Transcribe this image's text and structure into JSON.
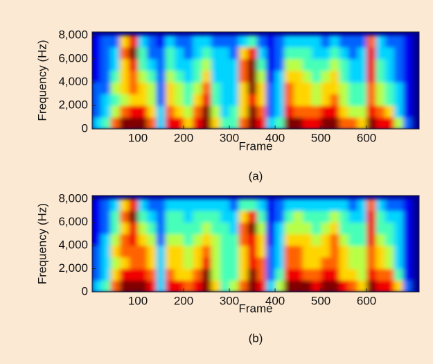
{
  "chart_data": [
    {
      "type": "heatmap",
      "colormap": "jet",
      "zlim": [
        0,
        9
      ],
      "xlabel": "Frame",
      "ylabel": "Frequency (Hz)",
      "caption": "(a)",
      "xlim": [
        0,
        715
      ],
      "ylim": [
        0,
        8300
      ],
      "xticks": [
        100,
        200,
        300,
        400,
        500,
        600
      ],
      "yticks": [
        0,
        {
          "value": 2000,
          "label": "2,000"
        },
        {
          "value": 4000,
          "label": "4,000"
        },
        {
          "value": 6000,
          "label": "6,000"
        },
        {
          "value": 8000,
          "label": "8,000"
        }
      ],
      "x": [
        10,
        30,
        50,
        70,
        90,
        110,
        130,
        150,
        170,
        190,
        210,
        230,
        250,
        270,
        290,
        310,
        330,
        350,
        370,
        390,
        410,
        430,
        450,
        470,
        490,
        510,
        530,
        550,
        570,
        590,
        610,
        630,
        650,
        670,
        690
      ],
      "y": [
        500,
        1500,
        2500,
        3500,
        4500,
        5500,
        6500,
        7500
      ],
      "values": [
        [
          3,
          4,
          7,
          9,
          9,
          9,
          7,
          3,
          8,
          8,
          6,
          8,
          9,
          6,
          4,
          4,
          7,
          9,
          8,
          3,
          4,
          9,
          9,
          8,
          8,
          9,
          9,
          7,
          7,
          6,
          9,
          8,
          8,
          5,
          2
        ],
        [
          2,
          3,
          5,
          7,
          8,
          8,
          6,
          3,
          7,
          6,
          5,
          7,
          9,
          5,
          3,
          4,
          6,
          9,
          7,
          2,
          3,
          8,
          7,
          7,
          7,
          8,
          8,
          6,
          5,
          5,
          8,
          7,
          6,
          3,
          1
        ],
        [
          2,
          3,
          4,
          5,
          6,
          6,
          5,
          2,
          6,
          5,
          4,
          6,
          8,
          4,
          3,
          3,
          6,
          8,
          6,
          2,
          3,
          7,
          6,
          6,
          5,
          6,
          7,
          5,
          4,
          4,
          7,
          5,
          4,
          3,
          1
        ],
        [
          2,
          2,
          5,
          6,
          7,
          6,
          5,
          2,
          6,
          5,
          4,
          5,
          7,
          4,
          3,
          3,
          6,
          9,
          6,
          2,
          3,
          7,
          6,
          6,
          5,
          6,
          6,
          5,
          4,
          4,
          7,
          5,
          4,
          3,
          1
        ],
        [
          1,
          2,
          4,
          6,
          7,
          5,
          4,
          2,
          5,
          4,
          3,
          4,
          6,
          3,
          3,
          3,
          7,
          9,
          5,
          1,
          3,
          6,
          6,
          5,
          4,
          5,
          6,
          4,
          3,
          3,
          8,
          4,
          3,
          2,
          1
        ],
        [
          1,
          2,
          3,
          6,
          8,
          4,
          3,
          2,
          4,
          3,
          3,
          4,
          5,
          3,
          3,
          3,
          7,
          9,
          4,
          1,
          2,
          5,
          5,
          4,
          4,
          4,
          5,
          4,
          3,
          3,
          8,
          4,
          3,
          2,
          1
        ],
        [
          1,
          2,
          3,
          7,
          9,
          4,
          2,
          2,
          4,
          3,
          2,
          3,
          4,
          3,
          3,
          2,
          6,
          8,
          3,
          1,
          2,
          4,
          4,
          4,
          3,
          3,
          4,
          3,
          2,
          3,
          8,
          3,
          3,
          2,
          1
        ],
        [
          1,
          2,
          2,
          6,
          8,
          3,
          2,
          1,
          3,
          2,
          2,
          3,
          3,
          2,
          2,
          2,
          3,
          4,
          2,
          1,
          2,
          3,
          3,
          3,
          3,
          2,
          3,
          2,
          2,
          2,
          7,
          3,
          2,
          2,
          1
        ]
      ]
    },
    {
      "type": "heatmap",
      "colormap": "jet",
      "zlim": [
        0,
        9
      ],
      "xlabel": "Frame",
      "ylabel": "Frequency (Hz)",
      "caption": "(b)",
      "xlim": [
        0,
        715
      ],
      "ylim": [
        0,
        8300
      ],
      "xticks": [
        100,
        200,
        300,
        400,
        500,
        600
      ],
      "yticks": [
        0,
        {
          "value": 2000,
          "label": "2,000"
        },
        {
          "value": 4000,
          "label": "4,000"
        },
        {
          "value": 6000,
          "label": "6,000"
        },
        {
          "value": 8000,
          "label": "8,000"
        }
      ],
      "x": [
        10,
        30,
        50,
        70,
        90,
        110,
        130,
        150,
        170,
        190,
        210,
        230,
        250,
        270,
        290,
        310,
        330,
        350,
        370,
        390,
        410,
        430,
        450,
        470,
        490,
        510,
        530,
        550,
        570,
        590,
        610,
        630,
        650,
        670,
        690
      ],
      "y": [
        500,
        1500,
        2500,
        3500,
        4500,
        5500,
        6500,
        7500
      ],
      "values": [
        [
          3,
          4,
          7,
          9,
          9,
          9,
          8,
          3,
          8,
          8,
          7,
          8,
          9,
          6,
          4,
          5,
          7,
          9,
          8,
          3,
          5,
          9,
          9,
          9,
          8,
          9,
          9,
          8,
          7,
          6,
          9,
          8,
          8,
          6,
          2
        ],
        [
          2,
          3,
          6,
          8,
          8,
          8,
          7,
          3,
          7,
          6,
          6,
          7,
          9,
          5,
          4,
          4,
          6,
          9,
          7,
          2,
          4,
          8,
          8,
          7,
          7,
          8,
          8,
          6,
          6,
          5,
          8,
          7,
          7,
          4,
          1
        ],
        [
          2,
          3,
          5,
          6,
          7,
          7,
          6,
          3,
          6,
          6,
          5,
          6,
          8,
          5,
          4,
          4,
          6,
          8,
          7,
          2,
          3,
          7,
          7,
          6,
          6,
          7,
          7,
          6,
          5,
          5,
          7,
          6,
          5,
          3,
          1
        ],
        [
          2,
          3,
          6,
          7,
          7,
          7,
          6,
          3,
          6,
          6,
          5,
          6,
          7,
          5,
          4,
          4,
          6,
          8,
          6,
          2,
          3,
          7,
          7,
          6,
          6,
          6,
          7,
          6,
          5,
          5,
          7,
          6,
          5,
          3,
          1
        ],
        [
          1,
          3,
          5,
          7,
          8,
          6,
          5,
          2,
          5,
          5,
          4,
          5,
          6,
          5,
          4,
          4,
          7,
          8,
          6,
          1,
          3,
          6,
          6,
          6,
          5,
          6,
          7,
          5,
          4,
          4,
          8,
          5,
          4,
          3,
          1
        ],
        [
          1,
          2,
          4,
          6,
          8,
          5,
          4,
          2,
          4,
          4,
          4,
          4,
          5,
          4,
          4,
          3,
          7,
          9,
          5,
          1,
          3,
          5,
          5,
          5,
          4,
          5,
          6,
          4,
          4,
          4,
          8,
          4,
          4,
          3,
          1
        ],
        [
          1,
          2,
          4,
          7,
          9,
          4,
          3,
          2,
          4,
          4,
          3,
          4,
          4,
          4,
          3,
          3,
          6,
          8,
          4,
          1,
          2,
          4,
          5,
          4,
          4,
          4,
          5,
          4,
          3,
          3,
          8,
          4,
          3,
          3,
          1
        ],
        [
          1,
          2,
          3,
          6,
          8,
          3,
          2,
          2,
          3,
          3,
          3,
          3,
          3,
          3,
          3,
          2,
          4,
          4,
          3,
          1,
          2,
          3,
          3,
          3,
          3,
          3,
          3,
          3,
          2,
          3,
          7,
          3,
          2,
          2,
          1
        ]
      ]
    }
  ]
}
